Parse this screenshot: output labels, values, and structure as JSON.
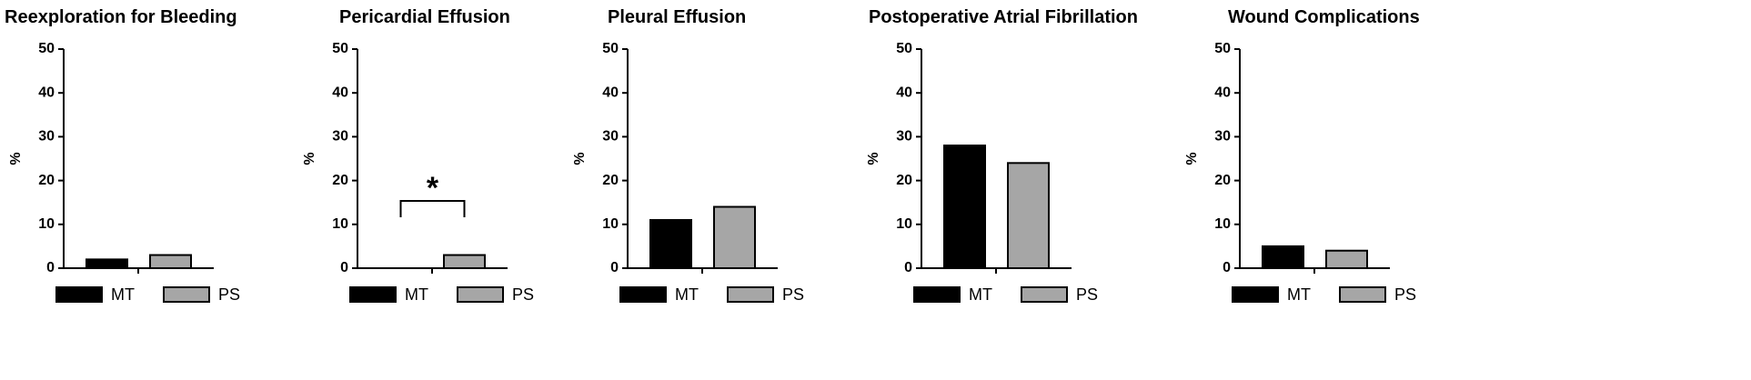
{
  "chart_data": [
    {
      "type": "bar",
      "title": "Reexploration for Bleeding",
      "y_label": "%",
      "ylim": [
        0,
        50
      ],
      "yticks": [
        0,
        10,
        20,
        30,
        40,
        50
      ],
      "series": [
        {
          "name": "MT",
          "color": "#000000",
          "values": [
            2
          ]
        },
        {
          "name": "PS",
          "color": "#a6a6a6",
          "values": [
            3
          ]
        }
      ]
    },
    {
      "type": "bar",
      "title": "Pericardial Effusion",
      "y_label": "%",
      "ylim": [
        0,
        50
      ],
      "yticks": [
        0,
        10,
        20,
        30,
        40,
        50
      ],
      "series": [
        {
          "name": "MT",
          "color": "#000000",
          "values": [
            0
          ]
        },
        {
          "name": "PS",
          "color": "#a6a6a6",
          "values": [
            3
          ]
        }
      ],
      "annotations": [
        {
          "text": "*"
        }
      ]
    },
    {
      "type": "bar",
      "title": "Pleural Effusion",
      "y_label": "%",
      "ylim": [
        0,
        50
      ],
      "yticks": [
        0,
        10,
        20,
        30,
        40,
        50
      ],
      "series": [
        {
          "name": "MT",
          "color": "#000000",
          "values": [
            11
          ]
        },
        {
          "name": "PS",
          "color": "#a6a6a6",
          "values": [
            14
          ]
        }
      ]
    },
    {
      "type": "bar",
      "title": "Postoperative Atrial Fibrillation",
      "y_label": "%",
      "ylim": [
        0,
        50
      ],
      "yticks": [
        0,
        10,
        20,
        30,
        40,
        50
      ],
      "series": [
        {
          "name": "MT",
          "color": "#000000",
          "values": [
            28
          ]
        },
        {
          "name": "PS",
          "color": "#a6a6a6",
          "values": [
            24
          ]
        }
      ]
    },
    {
      "type": "bar",
      "title": "Wound Complications",
      "y_label": "%",
      "ylim": [
        0,
        50
      ],
      "yticks": [
        0,
        10,
        20,
        30,
        40,
        50
      ],
      "series": [
        {
          "name": "MT",
          "color": "#000000",
          "values": [
            5
          ]
        },
        {
          "name": "PS",
          "color": "#a6a6a6",
          "values": [
            4
          ]
        }
      ]
    }
  ]
}
